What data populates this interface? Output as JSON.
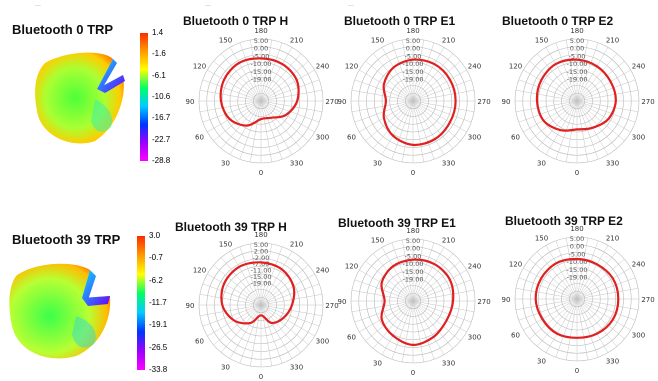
{
  "panels": [
    {
      "title": "Bluetooth 0 TRP",
      "colorbar": {
        "ticks": [
          "1.4",
          "-1.6",
          "-6.1",
          "-10.6",
          "-16.7",
          "-22.7",
          "-28.8"
        ],
        "colors": [
          "#ff2a00",
          "#ff9900",
          "#ffff00",
          "#00ff66",
          "#00ccff",
          "#0033ff",
          "#9900ff",
          "#ff00ff"
        ]
      }
    },
    {
      "title": "Bluetooth 39 TRP",
      "colorbar": {
        "ticks": [
          "3.0",
          "-0.7",
          "-6.2",
          "-11.7",
          "-19.1",
          "-26.5",
          "-33.8"
        ],
        "colors": [
          "#ff2a00",
          "#ff9900",
          "#ffff00",
          "#00ff66",
          "#00ccff",
          "#0033ff",
          "#9900ff",
          "#ff00ff"
        ]
      }
    }
  ],
  "chart_data": [
    {
      "type": "polar",
      "title": "Bluetooth 0 TRP H",
      "radial_ticks": [
        "5.00",
        "0.00",
        "-5.00",
        "-10.00",
        "-15.00",
        "-19.00"
      ],
      "angle_labels": [
        "0",
        "30",
        "60",
        "90",
        "120",
        "150",
        "180",
        "210",
        "240",
        "270",
        "300",
        "330"
      ],
      "angles": [
        0,
        30,
        60,
        90,
        120,
        150,
        180,
        210,
        240,
        270,
        300,
        330
      ],
      "values": [
        -12,
        -8,
        -5,
        -3.5,
        -2.5,
        -2,
        -2.5,
        -2.5,
        -3,
        -5,
        -8,
        -11.5
      ],
      "series_color": "#e02020"
    },
    {
      "type": "polar",
      "title": "Bluetooth 0 TRP E1",
      "radial_ticks": [
        "5.00",
        "0.00",
        "-5.00",
        "-10.00",
        "-15.00",
        "-19.00"
      ],
      "angle_labels": [
        "0",
        "30",
        "60",
        "90",
        "120",
        "150",
        "180",
        "210",
        "240",
        "270",
        "300",
        "330"
      ],
      "angles": [
        0,
        30,
        60,
        90,
        120,
        150,
        180,
        210,
        240,
        270,
        300,
        330
      ],
      "values": [
        -2,
        -3.5,
        -6,
        -8.5,
        -6,
        -4,
        -3,
        -2.5,
        -2.5,
        -2.5,
        -2.5,
        -2
      ],
      "series_color": "#e02020"
    },
    {
      "type": "polar",
      "title": "Bluetooth 0 TRP E2",
      "radial_ticks": [
        "5.00",
        "0.00",
        "-5.00",
        "-10.00",
        "-15.00",
        "-19.00"
      ],
      "angle_labels": [
        "0",
        "30",
        "60",
        "90",
        "120",
        "150",
        "180",
        "210",
        "240",
        "270",
        "300",
        "330"
      ],
      "angles": [
        0,
        30,
        60,
        90,
        120,
        150,
        180,
        210,
        240,
        270,
        300,
        330
      ],
      "values": [
        -8,
        -6,
        -4,
        -3.5,
        -3,
        -2.5,
        -3,
        -3.5,
        -4,
        -4,
        -5,
        -7
      ],
      "series_color": "#e02020"
    },
    {
      "type": "polar",
      "title": "Bluetooth 39 TRP H",
      "radial_ticks": [
        "5.00",
        "2.00",
        "-2.00",
        "-7.00",
        "-11.00",
        "-15.00",
        "-19.00"
      ],
      "angle_labels": [
        "0",
        "30",
        "60",
        "90",
        "120",
        "150",
        "180",
        "210",
        "240",
        "270",
        "300",
        "330"
      ],
      "angles": [
        0,
        30,
        60,
        90,
        120,
        150,
        180,
        210,
        240,
        270,
        300,
        330
      ],
      "values": [
        -15,
        -11,
        -7,
        -4,
        -2.5,
        -2,
        -2.5,
        -3,
        -4.5,
        -7,
        -9,
        -11
      ],
      "series_color": "#e02020"
    },
    {
      "type": "polar",
      "title": "Bluetooth 39 TRP E1",
      "radial_ticks": [
        "5.00",
        "0.00",
        "-5.00",
        "-10.00",
        "-15.00",
        "-19.00"
      ],
      "angle_labels": [
        "0",
        "30",
        "60",
        "90",
        "120",
        "150",
        "180",
        "210",
        "240",
        "270",
        "300",
        "330"
      ],
      "angles": [
        0,
        30,
        60,
        90,
        120,
        150,
        180,
        210,
        240,
        270,
        300,
        330
      ],
      "values": [
        -2,
        -3.5,
        -5,
        -8,
        -5,
        -3.5,
        -3,
        -2.5,
        -2.5,
        -3.5,
        -4,
        -3
      ],
      "series_color": "#e02020"
    },
    {
      "type": "polar",
      "title": "Bluetooth 39 TRP E2",
      "radial_ticks": [
        "5.00",
        "0.00",
        "-5.00",
        "-10.00",
        "-15.00",
        "-19.00"
      ],
      "angle_labels": [
        "0",
        "30",
        "60",
        "90",
        "120",
        "150",
        "180",
        "210",
        "240",
        "270",
        "300",
        "330"
      ],
      "angles": [
        0,
        30,
        60,
        90,
        120,
        150,
        180,
        210,
        240,
        270,
        300,
        330
      ],
      "values": [
        -4,
        -3.5,
        -3.5,
        -3,
        -3,
        -3,
        -3.5,
        -3.5,
        -3,
        -3,
        -3,
        -3.5
      ],
      "series_color": "#e02020"
    }
  ]
}
